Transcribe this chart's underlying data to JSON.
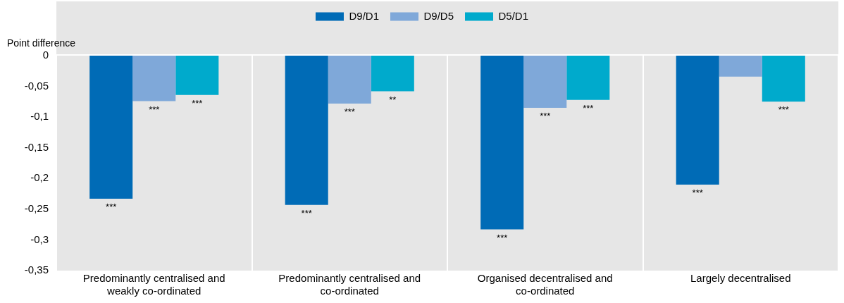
{
  "chart_data": {
    "type": "bar",
    "ylabel": "Point difference",
    "categories": [
      "Predominantly centralised and weakly co-ordinated",
      "Predominantly centralised and co-ordinated",
      "Organised decentralised and co-ordinated",
      "Largely decentralised"
    ],
    "series": [
      {
        "name": "D9/D1",
        "color": "#006bb6",
        "values": [
          -0.233,
          -0.243,
          -0.283,
          -0.21
        ],
        "value_labels": [
          "***",
          "***",
          "***",
          "***"
        ]
      },
      {
        "name": "D9/D5",
        "color": "#7fa8d9",
        "values": [
          -0.074,
          -0.078,
          -0.085,
          -0.034
        ],
        "value_labels": [
          "***",
          "***",
          "***",
          null
        ]
      },
      {
        "name": "D5/D1",
        "color": "#00aacc",
        "values": [
          -0.064,
          -0.058,
          -0.072,
          -0.075
        ],
        "value_labels": [
          "***",
          "**",
          "***",
          "***"
        ]
      }
    ],
    "ylim": [
      -0.35,
      0
    ],
    "yticks": [
      {
        "value": 0,
        "label": "0"
      },
      {
        "value": -0.05,
        "label": "-0,05"
      },
      {
        "value": -0.1,
        "label": "-0,1"
      },
      {
        "value": -0.15,
        "label": "-0,15"
      },
      {
        "value": -0.2,
        "label": "-0,2"
      },
      {
        "value": -0.25,
        "label": "-0,25"
      },
      {
        "value": -0.3,
        "label": "-0,3"
      },
      {
        "value": -0.35,
        "label": "-0,35"
      }
    ],
    "grid": "x",
    "legend": "top"
  }
}
